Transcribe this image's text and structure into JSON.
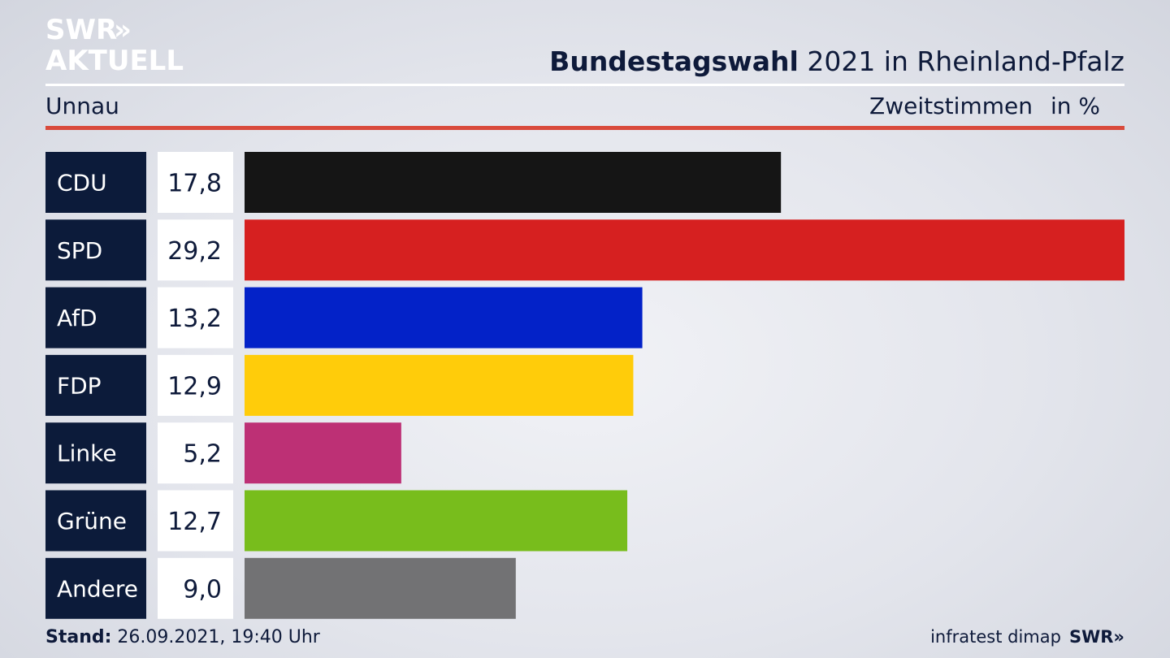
{
  "branding": {
    "logo_line1": "SWR",
    "logo_line2": "AKTUELL",
    "footer_source": "infratest dimap",
    "footer_logo": "SWR"
  },
  "header": {
    "title_bold": "Bundestagswahl",
    "title_rest": "2021 in Rheinland-Pfalz",
    "region": "Unnau",
    "vote_type": "Zweitstimmen",
    "unit": "in %"
  },
  "footer": {
    "stand_label": "Stand:",
    "stand_value": "26.09.2021, 19:40 Uhr"
  },
  "chart_data": {
    "type": "bar",
    "orientation": "horizontal",
    "title": "Bundestagswahl 2021 in Rheinland-Pfalz",
    "categories": [
      "CDU",
      "SPD",
      "AfD",
      "FDP",
      "Linke",
      "Grüne",
      "Andere"
    ],
    "values": [
      17.8,
      29.2,
      13.2,
      12.9,
      5.2,
      12.7,
      9.0
    ],
    "value_labels": [
      "17,8",
      "29,2",
      "13,2",
      "12,9",
      "5,2",
      "12,7",
      "9,0"
    ],
    "colors": [
      "#151515",
      "#d62020",
      "#0322c8",
      "#ffcc0a",
      "#bd3075",
      "#78bd1c",
      "#727274"
    ],
    "label_box_color": "#0c1b3a",
    "xlim": [
      0,
      29.2
    ],
    "grid": false,
    "legend": "none"
  }
}
